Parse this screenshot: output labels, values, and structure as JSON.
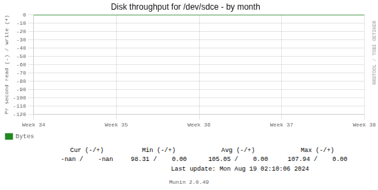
{
  "chart_data": {
    "type": "line",
    "title": "Disk throughput for /dev/sdce - by month",
    "y_label": "Pr second read (-) / write (+)",
    "categories": [
      "Week 34",
      "Week 35",
      "Week 36",
      "Week 37",
      "Week 38"
    ],
    "series": [
      {
        "name": "Bytes",
        "color": "#228822",
        "values": [
          0,
          0,
          0,
          0,
          0
        ]
      }
    ],
    "ylim": [
      -120,
      0
    ],
    "yticks": [
      -120,
      -110,
      -100,
      -90,
      -80,
      -70,
      -60,
      -50,
      -40,
      -30,
      -20,
      -10,
      0
    ],
    "grid": true,
    "legend": "bottom",
    "annotations": {
      "watermark": "RRDTOOL / TOBI OETIKER",
      "stats_headers": [
        "Cur (-/+)",
        "Min (-/+)",
        "Avg (-/+)",
        "Max (-/+)"
      ],
      "stats_values": [
        "-nan /    -nan",
        "98.31 /    0.00",
        "105.05 /    0.00",
        "107.94 /    0.00"
      ],
      "last_update": "Last update: Mon Aug 19 02:10:06 2024",
      "footer": "Munin 2.0.49"
    }
  }
}
